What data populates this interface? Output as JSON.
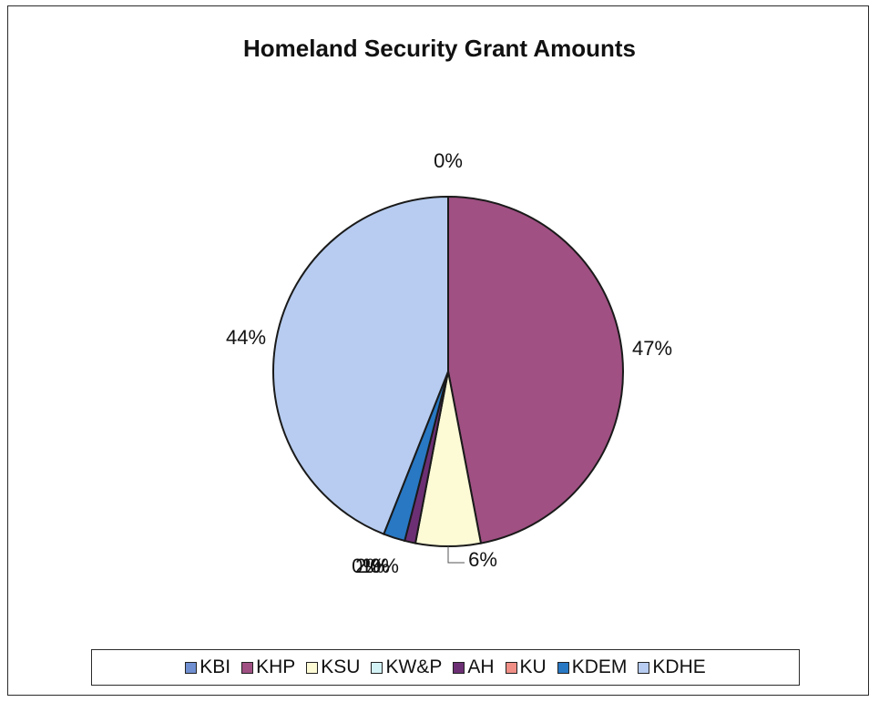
{
  "chart_data": {
    "type": "pie",
    "title": "Homeland Security Grant Amounts",
    "categories": [
      "KBI",
      "KHP",
      "KSU",
      "KW&P",
      "AH",
      "KU",
      "KDEM",
      "KDHE"
    ],
    "values": [
      0,
      47,
      6,
      0,
      1,
      0,
      2,
      44
    ],
    "data_labels": [
      "0%",
      "47%",
      "6%",
      "0%",
      "1%",
      "0%",
      "2%",
      "44%"
    ],
    "colors": [
      "#6f8fd0",
      "#a05083",
      "#fdfbd6",
      "#d3f2f6",
      "#6d2f74",
      "#f08f86",
      "#2878c4",
      "#b7ccf0"
    ],
    "legend": {
      "position": "bottom"
    }
  }
}
